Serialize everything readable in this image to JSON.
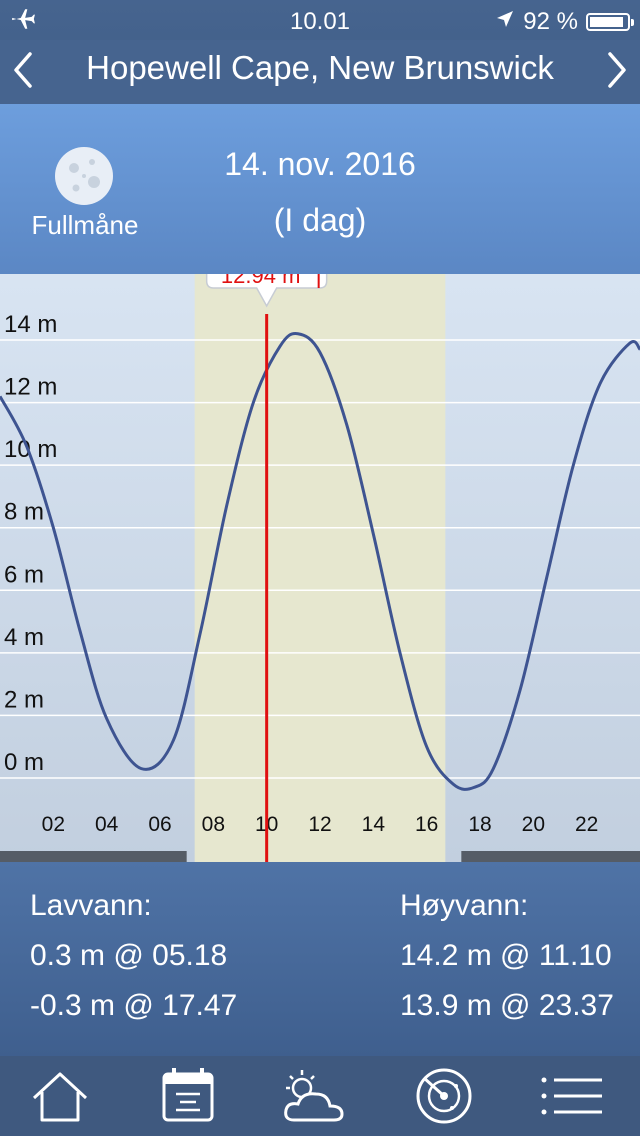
{
  "status": {
    "time": "10.01",
    "battery": "92 %",
    "battery_level": 0.92
  },
  "nav": {
    "title": "Hopewell Cape, New Brunswick",
    "prev_icon": "chevron-left-icon",
    "next_icon": "chevron-right-icon"
  },
  "header": {
    "moon_icon": "full-moon-icon",
    "moon_label": "Fullmåne",
    "date": "14. nov. 2016",
    "today": "(I dag)"
  },
  "chart_data": {
    "type": "line",
    "x_ticks": [
      "02",
      "04",
      "06",
      "08",
      "10",
      "12",
      "14",
      "16",
      "18",
      "20",
      "22"
    ],
    "y_ticks": [
      "0 m",
      "2 m",
      "4 m",
      "6 m",
      "8 m",
      "10 m",
      "12 m",
      "14 m"
    ],
    "xlim": [
      0,
      24
    ],
    "ylim": [
      -0.7,
      15.2
    ],
    "series": [
      {
        "x": [
          0.0,
          1.0,
          2.0,
          3.0,
          4.0,
          5.3,
          6.5,
          7.5,
          8.5,
          9.5,
          10.5,
          11.17,
          12.0,
          13.0,
          14.0,
          15.0,
          16.0,
          17.0,
          17.78,
          18.5,
          19.5,
          20.5,
          21.5,
          22.5,
          23.62,
          24.0
        ],
        "y": [
          12.2,
          10.6,
          8.0,
          4.7,
          1.9,
          0.3,
          1.2,
          4.6,
          8.7,
          12.0,
          13.8,
          14.2,
          13.6,
          11.3,
          7.8,
          4.0,
          1.0,
          -0.2,
          -0.3,
          0.3,
          2.8,
          6.4,
          10.0,
          12.6,
          13.9,
          13.7
        ]
      }
    ],
    "daylight_range": [
      7.3,
      16.7
    ],
    "current_time": 10.0,
    "current_value": "12.94 m",
    "trend": "rising",
    "grid": true
  },
  "summary": {
    "low": {
      "label": "Lavvann:",
      "entries": [
        "0.3 m @ 05.18",
        "-0.3 m @ 17.47"
      ]
    },
    "high": {
      "label": "Høyvann:",
      "entries": [
        "14.2 m @ 11.10",
        "13.9 m @ 23.37"
      ]
    }
  },
  "tabs": [
    "home-icon",
    "calendar-icon",
    "weather-icon",
    "radar-icon",
    "list-icon"
  ]
}
